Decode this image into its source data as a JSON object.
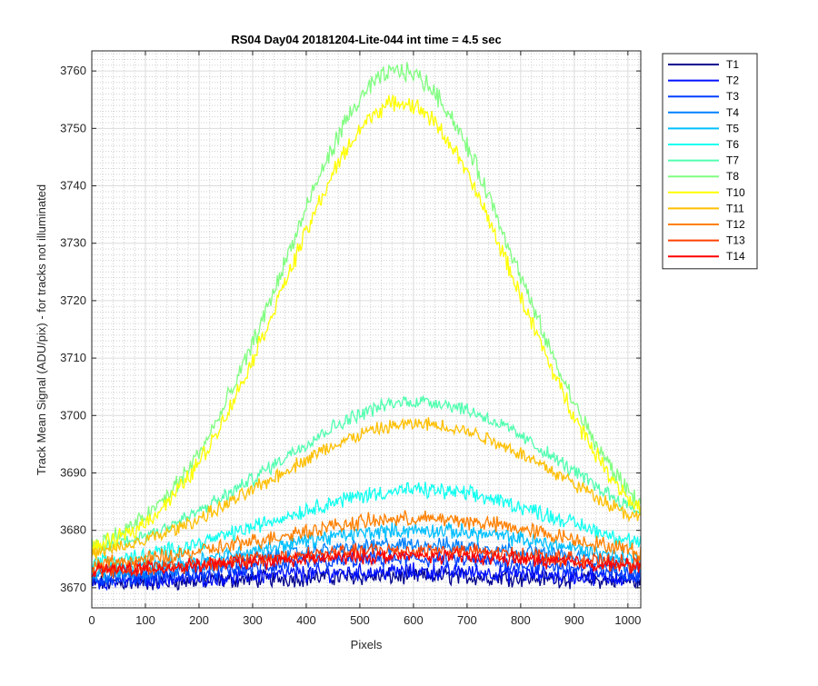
{
  "chart_data": {
    "type": "line",
    "title": "RS04 Day04 20181204-Lite-044 int time = 4.5 sec",
    "xlabel": "Pixels",
    "ylabel": "Track Mean Signal (ADU/pix) - for tracks not illuminated",
    "xlim": [
      0,
      1024
    ],
    "ylim": [
      3666.5,
      3763.5
    ],
    "x_ticks": [
      0,
      100,
      200,
      300,
      400,
      500,
      600,
      700,
      800,
      900,
      1000
    ],
    "y_ticks": [
      3670,
      3680,
      3690,
      3700,
      3710,
      3720,
      3730,
      3740,
      3750,
      3760
    ],
    "grid": true,
    "minor_grid": true,
    "legend_position": "outside-top-right",
    "noise_note_is_visual_only": true,
    "series": [
      {
        "name": "T1",
        "color": "#00008f",
        "base": 3670.5,
        "peak": 1.5,
        "center": 600,
        "width": 320,
        "noise": 1.2
      },
      {
        "name": "T2",
        "color": "#0010ff",
        "base": 3670.8,
        "peak": 2.0,
        "center": 600,
        "width": 320,
        "noise": 1.2
      },
      {
        "name": "T3",
        "color": "#0040ff",
        "base": 3671.0,
        "peak": 4.0,
        "center": 600,
        "width": 300,
        "noise": 1.2
      },
      {
        "name": "T4",
        "color": "#0080ff",
        "base": 3671.5,
        "peak": 6.0,
        "center": 610,
        "width": 290,
        "noise": 1.1
      },
      {
        "name": "T5",
        "color": "#00c0ff",
        "base": 3672.0,
        "peak": 8.0,
        "center": 610,
        "width": 290,
        "noise": 1.1
      },
      {
        "name": "T6",
        "color": "#10ffef",
        "base": 3673.0,
        "peak": 14.0,
        "center": 610,
        "width": 280,
        "noise": 1.1
      },
      {
        "name": "T7",
        "color": "#50ffaf",
        "base": 3674.5,
        "peak": 28.0,
        "center": 610,
        "width": 270,
        "noise": 1.0
      },
      {
        "name": "T8",
        "color": "#80ff80",
        "base": 3675.0,
        "peak": 85.0,
        "center": 575,
        "width": 215,
        "noise": 1.3
      },
      {
        "name": "T10",
        "color": "#ffff00",
        "base": 3674.5,
        "peak": 80.0,
        "center": 575,
        "width": 215,
        "noise": 1.2
      },
      {
        "name": "T11",
        "color": "#ffbf00",
        "base": 3673.5,
        "peak": 25.0,
        "center": 610,
        "width": 280,
        "noise": 1.0
      },
      {
        "name": "T12",
        "color": "#ff8000",
        "base": 3673.0,
        "peak": 9.0,
        "center": 610,
        "width": 290,
        "noise": 1.1
      },
      {
        "name": "T13",
        "color": "#ff4000",
        "base": 3672.5,
        "peak": 4.0,
        "center": 600,
        "width": 300,
        "noise": 1.1
      },
      {
        "name": "T14",
        "color": "#ff0000",
        "base": 3672.5,
        "peak": 3.0,
        "center": 600,
        "width": 320,
        "noise": 1.0
      }
    ]
  }
}
